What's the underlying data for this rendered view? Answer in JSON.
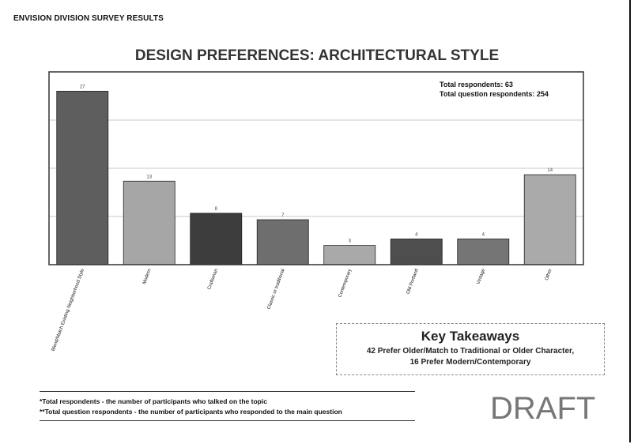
{
  "header": {
    "title": "ENVISION DIVISION SURVEY RESULTS"
  },
  "chart_data": {
    "type": "bar",
    "title": "DESIGN PREFERENCES: ARCHITECTURAL STYLE",
    "categories": [
      "Blend/Match Existing Neighborhood Style",
      "Modern",
      "Craftsman",
      "Classic or traditional",
      "Contemporary",
      "Old Portland",
      "Vintage",
      "Other"
    ],
    "values": [
      27,
      13,
      8,
      7,
      3,
      4,
      4,
      14
    ],
    "ylim": [
      0,
      30
    ],
    "grid": true,
    "xlabel": "",
    "ylabel": "",
    "bar_colors": [
      "#5e5e5e",
      "#a6a6a6",
      "#3d3d3d",
      "#6e6e6e",
      "#a9a9a9",
      "#4e4e4e",
      "#757575",
      "#aaaaaa"
    ]
  },
  "stats": {
    "respondents": "Total respondents: 63",
    "question_respondents": "Total question respondents: 254"
  },
  "takeaways": {
    "title": "Key Takeaways",
    "line1": "42 Prefer Older/Match to Traditional or Older Character,",
    "line2": "16 Prefer Modern/Contemporary"
  },
  "footnotes": {
    "note1": "*Total respondents - the number of participants who talked on the topic",
    "note2": "**Total question respondents - the number of participants who responded to the main question"
  },
  "watermark": "DRAFT"
}
